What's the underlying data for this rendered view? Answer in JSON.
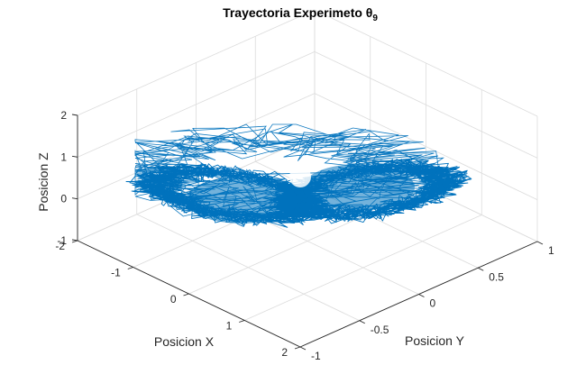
{
  "chart_data": {
    "type": "line",
    "title": "Trayectoria Experimeto θ",
    "title_subscript": "9",
    "xlabel": "Posicion X",
    "ylabel": "Posicion Y",
    "zlabel": "Posicion Z",
    "xlim": [
      -2,
      2
    ],
    "ylim": [
      -1,
      1
    ],
    "zlim": [
      -1,
      2
    ],
    "x_ticks": [
      "-2",
      "-1",
      "0",
      "1",
      "2"
    ],
    "y_ticks": [
      "-1",
      "-0.5",
      "0",
      "0.5",
      "1"
    ],
    "z_ticks": [
      "-1",
      "0",
      "1",
      "2"
    ],
    "grid": true,
    "view": "3d",
    "series": [
      {
        "color": "#0072BD"
      }
    ]
  }
}
